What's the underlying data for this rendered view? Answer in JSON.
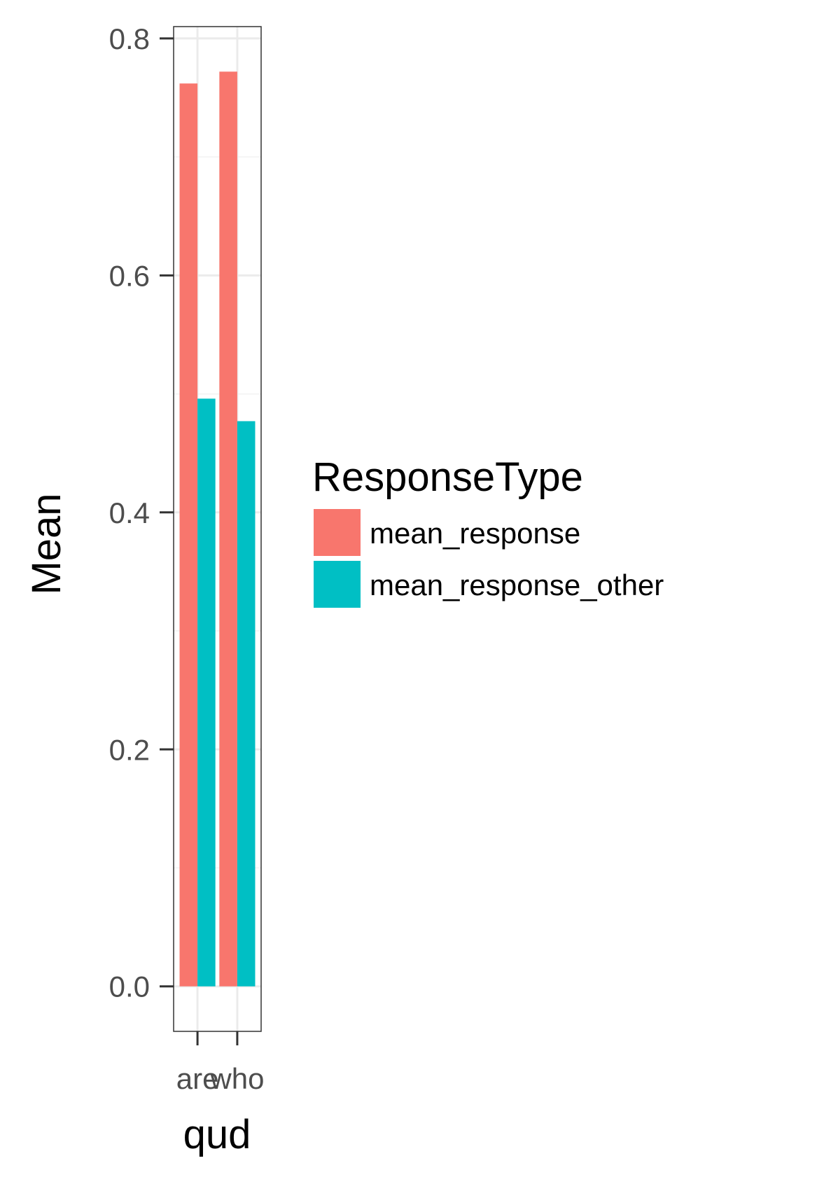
{
  "chart_data": {
    "type": "bar",
    "categories": [
      "are",
      "who"
    ],
    "series": [
      {
        "name": "mean_response",
        "values": [
          0.762,
          0.772
        ],
        "color": "#F8766D"
      },
      {
        "name": "mean_response_other",
        "values": [
          0.496,
          0.477
        ],
        "color": "#00BFC4"
      }
    ],
    "xlabel": "qud",
    "ylabel": "Mean",
    "ylim": [
      -0.038,
      0.81
    ],
    "yticks": [
      0.0,
      0.2,
      0.4,
      0.6,
      0.8
    ],
    "ytick_labels": [
      "0.0",
      "0.2",
      "0.4",
      "0.6",
      "0.8"
    ],
    "grid": true,
    "legend": {
      "title": "ResponseType",
      "position": "right"
    }
  }
}
